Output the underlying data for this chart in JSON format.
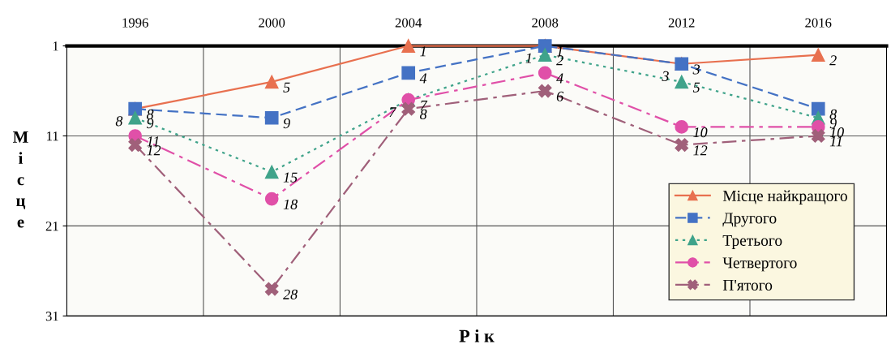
{
  "chart_data": {
    "type": "line",
    "categories": [
      "1996",
      "2000",
      "2004",
      "2008",
      "2012",
      "2016"
    ],
    "xlabel": "Р і к",
    "ylabel": "Місце",
    "ylim": [
      31,
      1
    ],
    "yticks": [
      1,
      11,
      21,
      31
    ],
    "grid": true,
    "legend": "bottom right",
    "data_labels": true,
    "series": [
      {
        "name": "Місце найкращого",
        "color": "#e8704f",
        "marker": "triangle",
        "line_style": "solid",
        "values": [
          8,
          5,
          1,
          1,
          3,
          2
        ]
      },
      {
        "name": "Другого",
        "color": "#4472c4",
        "marker": "square",
        "line_style": "dashed",
        "values": [
          8,
          9,
          4,
          1,
          3,
          8
        ]
      },
      {
        "name": "Третього",
        "color": "#3fa38a",
        "marker": "triangle",
        "line_style": "dotted",
        "values": [
          9,
          15,
          7,
          2,
          5,
          9
        ]
      },
      {
        "name": "Четвертого",
        "color": "#e050a8",
        "marker": "circle",
        "line_style": "dashdot",
        "values": [
          11,
          18,
          7,
          4,
          10,
          10
        ]
      },
      {
        "name": "П'ятого",
        "color": "#a0607a",
        "marker": "cross",
        "line_style": "dashdot",
        "values": [
          12,
          28,
          8,
          6,
          12,
          11
        ]
      }
    ]
  }
}
